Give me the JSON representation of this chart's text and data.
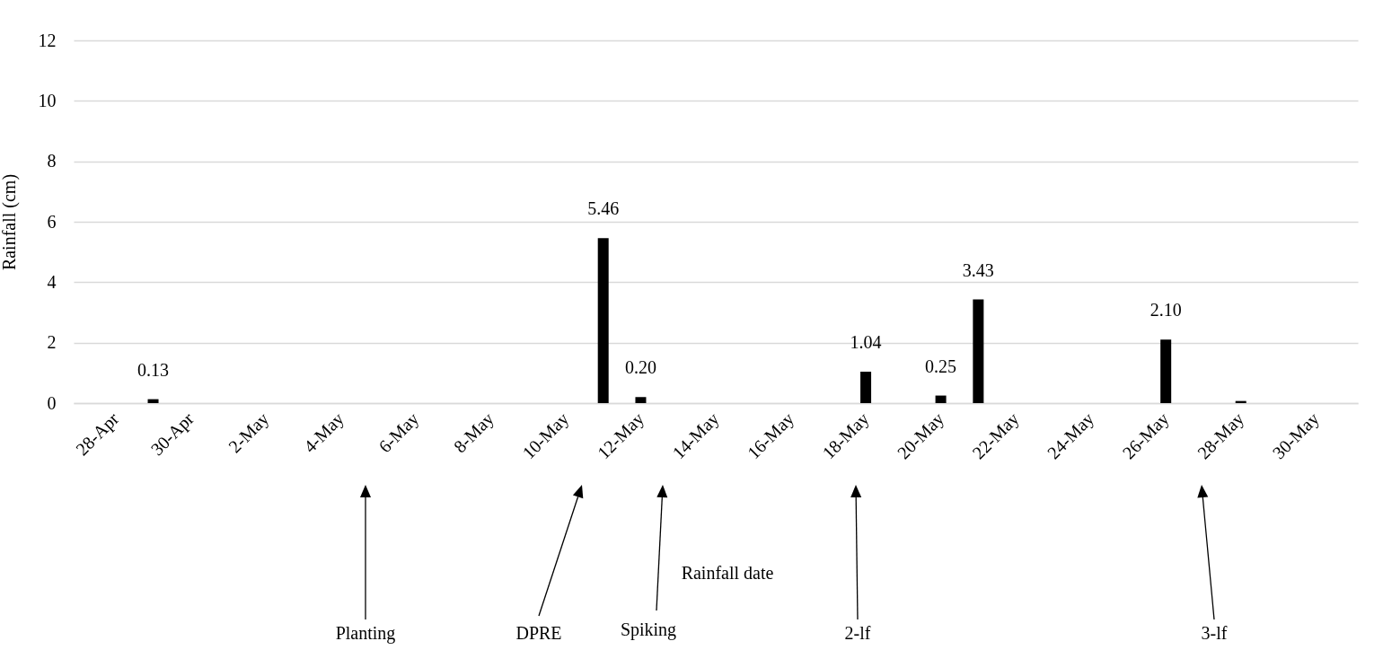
{
  "chart_data": {
    "type": "bar",
    "x": [
      "--04-29",
      "--05-11",
      "--05-12",
      "--05-18",
      "--05-20",
      "--05-21",
      "--05-26",
      "--05-28"
    ],
    "series": [
      {
        "color": "#000000",
        "values": [
          0.13,
          5.46,
          0.2,
          1.04,
          0.25,
          3.43,
          2.1,
          0.07
        ],
        "value_labels": [
          "0.13",
          "5.46",
          "0.20",
          "1.04",
          "0.25",
          "3.43",
          "2.10",
          null
        ]
      }
    ],
    "ylabel": "Rainfall (cm)",
    "xlim": [
      "--04-27",
      "--05-31"
    ],
    "xticks": [
      {
        "value": "--04-28",
        "label": "28-Apr"
      },
      {
        "value": "--04-30",
        "label": "30-Apr"
      },
      {
        "value": "--05-02",
        "label": "2-May"
      },
      {
        "value": "--05-04",
        "label": "4-May"
      },
      {
        "value": "--05-06",
        "label": "6-May"
      },
      {
        "value": "--05-08",
        "label": "8-May"
      },
      {
        "value": "--05-10",
        "label": "10-May"
      },
      {
        "value": "--05-12",
        "label": "12-May"
      },
      {
        "value": "--05-14",
        "label": "14-May"
      },
      {
        "value": "--05-16",
        "label": "16-May"
      },
      {
        "value": "--05-18",
        "label": "18-May"
      },
      {
        "value": "--05-20",
        "label": "20-May"
      },
      {
        "value": "--05-22",
        "label": "22-May"
      },
      {
        "value": "--05-24",
        "label": "24-May"
      },
      {
        "value": "--05-26",
        "label": "26-May"
      },
      {
        "value": "--05-28",
        "label": "28-May"
      },
      {
        "value": "--05-30",
        "label": "30-May"
      }
    ],
    "ylim": [
      0,
      12
    ],
    "yticks": [
      0,
      2,
      4,
      6,
      8,
      10,
      12
    ],
    "grid": "y",
    "annotations": [
      "Rainfall date",
      "Planting",
      "DPRE",
      "Spiking",
      "2-lf",
      "3-lf"
    ]
  }
}
